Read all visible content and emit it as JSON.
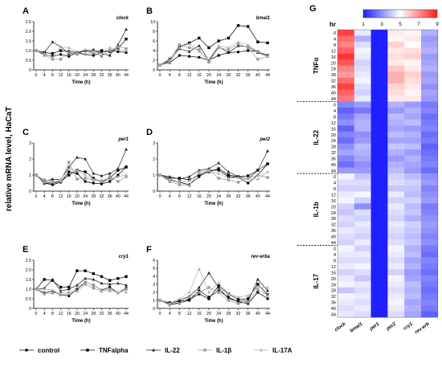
{
  "figure": {
    "shared_ylabel": "relative mRNA level, HaCaT",
    "legend": [
      "control",
      "TNFalpha",
      "IL-22",
      "IL-1β",
      "IL-17A"
    ],
    "heatmap_panel_label": "G",
    "colorbar_title": "hr"
  },
  "series_styles": [
    {
      "color": "#000000",
      "marker": "circle"
    },
    {
      "color": "#000000",
      "marker": "square"
    },
    {
      "color": "#222222",
      "marker": "triangle"
    },
    {
      "color": "#9a9a9a",
      "marker": "square"
    },
    {
      "color": "#b0b0b0",
      "marker": "triangle"
    }
  ],
  "chart_data": [
    {
      "type": "line",
      "panel": "A",
      "gene": "clock",
      "xlabel": "Time (h)",
      "x": [
        0,
        4,
        8,
        12,
        16,
        20,
        24,
        28,
        32,
        36,
        40,
        44
      ],
      "xticks": [
        "0",
        "4",
        "8",
        "12",
        "16",
        "20",
        "24",
        "28",
        "32",
        "36",
        "40",
        "44"
      ],
      "ylim": [
        0,
        2.5
      ],
      "yticks": [
        "0",
        "0.5",
        "1.0",
        "1.5",
        "2.0",
        "2.5"
      ],
      "series": [
        {
          "name": "control",
          "values": [
            1.0,
            0.8,
            0.7,
            0.8,
            0.7,
            0.9,
            0.8,
            0.75,
            0.9,
            1.0,
            0.95,
            0.9
          ]
        },
        {
          "name": "TNFalpha",
          "values": [
            1.0,
            0.9,
            0.85,
            1.0,
            0.95,
            0.9,
            1.0,
            0.9,
            1.0,
            0.95,
            1.1,
            1.6
          ]
        },
        {
          "name": "IL-22",
          "values": [
            1.0,
            0.9,
            1.45,
            1.2,
            0.85,
            0.85,
            1.0,
            1.05,
            0.85,
            0.75,
            1.3,
            2.1
          ]
        },
        {
          "name": "IL-1β",
          "values": [
            1.0,
            0.75,
            0.55,
            0.55,
            0.9,
            0.8,
            0.8,
            0.9,
            0.7,
            1.0,
            1.2,
            1.1
          ]
        },
        {
          "name": "IL-17A",
          "values": [
            1.0,
            0.85,
            0.65,
            1.2,
            1.15,
            0.9,
            1.05,
            0.95,
            0.85,
            1.15,
            1.05,
            1.0
          ]
        }
      ]
    },
    {
      "type": "line",
      "panel": "B",
      "gene": "bmal1",
      "xlabel": "Time (h)",
      "x": [
        0,
        4,
        8,
        12,
        16,
        20,
        24,
        28,
        32,
        36,
        40,
        44
      ],
      "xticks": [
        "0",
        "4",
        "8",
        "12",
        "16",
        "20",
        "24",
        "28",
        "32",
        "36",
        "40",
        "44"
      ],
      "ylim": [
        0,
        10
      ],
      "yticks": [
        "0",
        "2",
        "4",
        "6",
        "8",
        "10"
      ],
      "series": [
        {
          "name": "control",
          "values": [
            1.0,
            1.5,
            3.0,
            2.8,
            2.6,
            2.0,
            3.0,
            3.6,
            3.7,
            4.0,
            3.8,
            3.0
          ]
        },
        {
          "name": "TNFalpha",
          "values": [
            1.0,
            2.2,
            4.8,
            5.6,
            6.6,
            4.6,
            6.0,
            6.6,
            9.2,
            9.0,
            5.8,
            5.6
          ]
        },
        {
          "name": "IL-22",
          "values": [
            1.0,
            1.8,
            4.4,
            3.8,
            5.0,
            2.0,
            4.8,
            3.6,
            5.0,
            4.8,
            3.6,
            2.8
          ]
        },
        {
          "name": "IL-1β",
          "values": [
            1.0,
            2.0,
            5.2,
            4.6,
            4.2,
            1.6,
            4.6,
            4.2,
            5.4,
            4.6,
            2.2,
            2.8
          ]
        },
        {
          "name": "IL-17A",
          "values": [
            1.0,
            1.6,
            4.6,
            5.4,
            3.8,
            2.2,
            5.0,
            4.6,
            5.8,
            5.2,
            3.8,
            2.8
          ]
        }
      ]
    },
    {
      "type": "line",
      "panel": "C",
      "gene": "per1",
      "xlabel": "Time (h)",
      "x": [
        0,
        4,
        8,
        12,
        16,
        20,
        24,
        28,
        32,
        36,
        40,
        44
      ],
      "xticks": [
        "0",
        "4",
        "8",
        "12",
        "16",
        "20",
        "24",
        "28",
        "32",
        "36",
        "40",
        "44"
      ],
      "ylim": [
        0,
        3
      ],
      "yticks": [
        "0",
        "1",
        "2",
        "3"
      ],
      "series": [
        {
          "name": "control",
          "values": [
            1.0,
            0.5,
            0.4,
            0.55,
            1.2,
            1.1,
            0.6,
            0.5,
            0.45,
            0.6,
            1.0,
            1.5
          ]
        },
        {
          "name": "TNFalpha",
          "values": [
            1.0,
            0.5,
            0.5,
            0.6,
            1.0,
            1.3,
            1.2,
            0.8,
            0.55,
            0.8,
            1.3,
            1.5
          ]
        },
        {
          "name": "IL-22",
          "values": [
            1.0,
            0.6,
            0.75,
            0.7,
            1.5,
            2.1,
            2.0,
            1.1,
            0.95,
            1.1,
            1.4,
            2.6
          ]
        },
        {
          "name": "IL-1β",
          "values": [
            1.0,
            0.7,
            0.6,
            0.6,
            1.8,
            0.75,
            0.8,
            0.7,
            0.6,
            0.9,
            0.6,
            0.9
          ]
        },
        {
          "name": "IL-17A",
          "values": [
            1.0,
            0.55,
            0.55,
            0.7,
            1.4,
            1.3,
            1.0,
            0.7,
            0.7,
            0.75,
            0.9,
            1.0
          ]
        }
      ]
    },
    {
      "type": "line",
      "panel": "D",
      "gene": "per2",
      "xlabel": "Time (h)",
      "x": [
        0,
        4,
        8,
        12,
        16,
        20,
        24,
        28,
        32,
        36,
        40,
        44
      ],
      "xticks": [
        "0",
        "4",
        "8",
        "12",
        "16",
        "20",
        "24",
        "28",
        "32",
        "36",
        "40",
        "44"
      ],
      "ylim": [
        0,
        3
      ],
      "yticks": [
        "0",
        "1",
        "2",
        "3"
      ],
      "series": [
        {
          "name": "control",
          "values": [
            1.0,
            0.7,
            0.55,
            0.4,
            0.9,
            1.3,
            1.3,
            0.9,
            0.85,
            0.5,
            1.0,
            1.7
          ]
        },
        {
          "name": "TNFalpha",
          "values": [
            1.0,
            0.8,
            0.8,
            0.7,
            1.0,
            1.2,
            1.4,
            1.0,
            0.9,
            0.95,
            1.3,
            1.7
          ]
        },
        {
          "name": "IL-22",
          "values": [
            1.0,
            0.9,
            0.75,
            0.9,
            1.3,
            1.4,
            1.75,
            1.2,
            0.9,
            0.75,
            1.3,
            2.5
          ]
        },
        {
          "name": "IL-1β",
          "values": [
            1.0,
            0.6,
            0.4,
            0.35,
            1.2,
            1.3,
            0.8,
            0.7,
            0.55,
            0.8,
            1.0,
            0.85
          ]
        },
        {
          "name": "IL-17A",
          "values": [
            1.0,
            0.75,
            0.55,
            0.65,
            1.1,
            1.25,
            1.1,
            0.8,
            0.85,
            0.75,
            0.75,
            1.2
          ]
        }
      ]
    },
    {
      "type": "line",
      "panel": "E",
      "gene": "cry1",
      "xlabel": "Time (h)",
      "x": [
        0,
        4,
        8,
        12,
        16,
        20,
        24,
        28,
        32,
        36,
        40,
        44
      ],
      "xticks": [
        "0",
        "4",
        "8",
        "12",
        "16",
        "20",
        "24",
        "28",
        "32",
        "36",
        "40",
        "44"
      ],
      "ylim": [
        0,
        2.5
      ],
      "yticks": [
        "0",
        "0.5",
        "1.0",
        "1.5",
        "2.0",
        "2.5"
      ],
      "series": [
        {
          "name": "control",
          "values": [
            1.0,
            0.8,
            0.9,
            0.7,
            0.65,
            1.0,
            1.35,
            1.2,
            0.95,
            1.1,
            0.8,
            1.05
          ]
        },
        {
          "name": "TNFalpha",
          "values": [
            1.0,
            1.5,
            1.45,
            1.1,
            1.1,
            1.95,
            1.95,
            1.8,
            1.65,
            1.45,
            1.55,
            1.65
          ]
        },
        {
          "name": "IL-22",
          "values": [
            1.0,
            1.05,
            1.5,
            0.9,
            1.0,
            1.2,
            1.55,
            1.5,
            1.3,
            1.25,
            1.3,
            1.2
          ]
        },
        {
          "name": "IL-1β",
          "values": [
            1.0,
            0.75,
            0.8,
            0.8,
            0.8,
            0.9,
            1.25,
            1.05,
            0.9,
            1.0,
            0.8,
            1.0
          ]
        },
        {
          "name": "IL-17A",
          "values": [
            1.0,
            1.0,
            0.95,
            0.7,
            0.75,
            1.1,
            1.35,
            1.2,
            0.95,
            0.9,
            0.85,
            0.85
          ]
        }
      ]
    },
    {
      "type": "line",
      "panel": "F",
      "gene": "rev-erba",
      "xlabel": "Time (h)",
      "x": [
        0,
        4,
        8,
        12,
        16,
        20,
        24,
        28,
        32,
        36,
        40,
        44
      ],
      "xticks": [
        "0",
        "4",
        "8",
        "12",
        "16",
        "20",
        "24",
        "28",
        "32",
        "36",
        "40",
        "44"
      ],
      "ylim": [
        0,
        6
      ],
      "yticks": [
        "0",
        "1",
        "2",
        "3",
        "4",
        "5",
        "6"
      ],
      "series": [
        {
          "name": "control",
          "values": [
            1.0,
            0.5,
            0.7,
            1.0,
            2.2,
            1.4,
            2.2,
            1.4,
            0.8,
            0.6,
            2.0,
            1.2
          ]
        },
        {
          "name": "TNFalpha",
          "values": [
            1.0,
            0.7,
            0.9,
            1.1,
            1.8,
            1.2,
            2.8,
            1.8,
            1.1,
            1.2,
            3.0,
            1.7
          ]
        },
        {
          "name": "IL-22",
          "values": [
            1.0,
            0.6,
            1.0,
            1.5,
            2.6,
            4.4,
            2.6,
            1.2,
            0.9,
            0.9,
            3.6,
            2.2
          ]
        },
        {
          "name": "IL-1β",
          "values": [
            1.0,
            0.4,
            0.6,
            1.4,
            2.0,
            2.6,
            2.0,
            1.0,
            0.6,
            0.8,
            2.4,
            1.6
          ]
        },
        {
          "name": "IL-17A",
          "values": [
            1.0,
            0.6,
            1.2,
            2.0,
            4.9,
            2.0,
            3.2,
            1.8,
            1.4,
            1.6,
            2.6,
            2.6
          ]
        }
      ]
    },
    {
      "type": "heatmap",
      "panel": "G",
      "columns": [
        "clock",
        "bmal1",
        "per1",
        "per2",
        "cry1",
        "rev-erb"
      ],
      "groups": [
        "TNFα",
        "IL-22",
        "IL-1b",
        "IL-17"
      ],
      "row_labels": [
        "0",
        "4",
        "8",
        "12",
        "16",
        "20",
        "24",
        "28",
        "32",
        "36",
        "40",
        "44"
      ],
      "colorbar": {
        "min": 1,
        "max": 9,
        "ticks": [
          "1",
          "3",
          "5",
          "7",
          "9"
        ],
        "low_color": "#1f1fff",
        "mid_color": "#ffffff",
        "high_color": "#ff1f1f"
      },
      "columns_values": {
        "clock": [
          8.4,
          7.6,
          7.2,
          7.8,
          8.6,
          8.0,
          7.2,
          6.8,
          7.6,
          8.4,
          7.8,
          7.4,
          2.8,
          2.2,
          2.6,
          3.0,
          2.2,
          2.8,
          2.4,
          3.0,
          3.4,
          2.8,
          2.4,
          3.2,
          4.8,
          4.4,
          4.2,
          4.6,
          4.8,
          4.2,
          4.0,
          4.4,
          4.2,
          4.6,
          4.4,
          4.2,
          4.8,
          4.6,
          4.4,
          4.6,
          4.2,
          4.6,
          4.8,
          4.0,
          4.8,
          4.6,
          4.4,
          4.6
        ],
        "bmal1": [
          4.6,
          3.6,
          4.4,
          4.8,
          4.6,
          4.2,
          4.4,
          4.6,
          4.8,
          4.4,
          4.2,
          4.6,
          3.2,
          2.6,
          3.4,
          3.6,
          3.6,
          3.0,
          3.2,
          3.8,
          3.6,
          3.4,
          3.0,
          3.2,
          4.0,
          4.4,
          4.2,
          4.8,
          4.2,
          3.0,
          4.4,
          4.2,
          4.6,
          4.4,
          4.2,
          4.6,
          4.2,
          4.6,
          4.4,
          4.8,
          4.4,
          4.0,
          4.6,
          4.4,
          4.6,
          4.4,
          4.6,
          4.4
        ],
        "per1": [
          1.0,
          1.0,
          1.0,
          1.0,
          1.0,
          1.0,
          1.0,
          1.0,
          1.0,
          1.0,
          1.0,
          1.0,
          1.0,
          1.0,
          1.0,
          1.0,
          1.0,
          1.0,
          1.0,
          1.0,
          1.0,
          1.0,
          1.0,
          1.0,
          1.0,
          1.0,
          1.0,
          1.0,
          1.0,
          1.0,
          1.0,
          1.0,
          1.0,
          1.0,
          1.0,
          1.0,
          1.0,
          1.0,
          1.0,
          1.0,
          1.0,
          1.0,
          1.0,
          1.0,
          1.0,
          1.0,
          1.0,
          1.0
        ],
        "per2": [
          5.4,
          5.2,
          5.8,
          5.4,
          5.6,
          5.4,
          6.0,
          6.4,
          6.4,
          5.8,
          5.6,
          5.4,
          3.6,
          3.2,
          3.8,
          3.6,
          3.4,
          3.8,
          3.4,
          4.0,
          3.6,
          3.2,
          3.6,
          3.8,
          4.2,
          4.4,
          4.0,
          4.6,
          4.2,
          4.6,
          4.4,
          4.2,
          4.6,
          4.4,
          4.2,
          4.4,
          4.8,
          4.6,
          4.4,
          4.6,
          4.2,
          4.8,
          4.6,
          4.4,
          4.6,
          4.8,
          4.6,
          4.4
        ],
        "cry1": [
          5.2,
          5.4,
          5.0,
          5.6,
          5.8,
          5.2,
          5.4,
          5.8,
          5.6,
          5.4,
          5.2,
          5.4,
          3.2,
          3.6,
          3.4,
          3.8,
          3.2,
          3.6,
          3.4,
          3.8,
          3.2,
          3.6,
          3.4,
          3.2,
          3.8,
          4.2,
          4.0,
          3.8,
          4.2,
          3.8,
          4.0,
          3.6,
          4.2,
          4.0,
          3.8,
          4.0,
          3.6,
          3.8,
          3.4,
          3.6,
          3.2,
          3.4,
          3.8,
          3.6,
          3.8,
          3.4,
          3.6,
          3.4
        ],
        "rev-erb": [
          3.6,
          3.2,
          3.4,
          3.6,
          3.2,
          3.4,
          3.6,
          3.2,
          3.4,
          3.0,
          3.4,
          3.2,
          2.6,
          2.8,
          2.4,
          2.6,
          2.8,
          2.4,
          2.6,
          2.2,
          2.4,
          2.6,
          2.8,
          2.4,
          3.0,
          3.2,
          2.8,
          3.0,
          3.2,
          2.6,
          2.8,
          3.0,
          3.2,
          3.0,
          2.8,
          3.0,
          2.6,
          2.4,
          2.8,
          2.6,
          2.4,
          2.8,
          2.6,
          2.4,
          2.6,
          2.8,
          2.6,
          2.2
        ]
      }
    }
  ]
}
